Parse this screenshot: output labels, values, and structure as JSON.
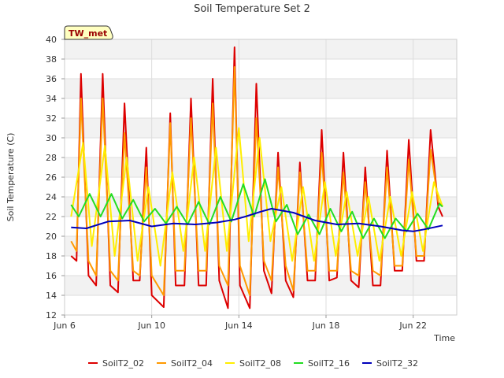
{
  "chart_data": {
    "type": "line",
    "title": "Soil Temperature Set 2",
    "xlabel": "Time",
    "ylabel": "Soil Temperature (C)",
    "badge": "TW_met",
    "xlim": [
      6.0,
      24.0
    ],
    "ylim": [
      12,
      40
    ],
    "x_unit": "day of June",
    "x_ticks": [
      {
        "value": 6,
        "label": "Jun 6"
      },
      {
        "value": 10,
        "label": "Jun 10"
      },
      {
        "value": 14,
        "label": "Jun 14"
      },
      {
        "value": 18,
        "label": "Jun 18"
      },
      {
        "value": 22,
        "label": "Jun 22"
      }
    ],
    "y_ticks": [
      12,
      14,
      16,
      18,
      20,
      22,
      24,
      26,
      28,
      30,
      32,
      34,
      36,
      38,
      40
    ],
    "grid": true,
    "legend_position": "bottom",
    "colors": {
      "SoilT2_02": "#dd0000",
      "SoilT2_04": "#ff9900",
      "SoilT2_08": "#ffee00",
      "SoilT2_16": "#22dd22",
      "SoilT2_32": "#0000bb"
    },
    "series": [
      {
        "name": "SoilT2_02",
        "x": [
          6.3,
          6.55,
          6.75,
          7.1,
          7.45,
          7.75,
          8.1,
          8.45,
          8.75,
          9.15,
          9.45,
          9.75,
          10.0,
          10.55,
          10.85,
          11.1,
          11.5,
          11.8,
          12.15,
          12.5,
          12.8,
          13.1,
          13.5,
          13.8,
          14.05,
          14.5,
          14.8,
          15.15,
          15.5,
          15.8,
          16.15,
          16.5,
          16.8,
          17.15,
          17.5,
          17.8,
          18.15,
          18.5,
          18.8,
          19.15,
          19.5,
          19.8,
          20.15,
          20.5,
          20.8,
          21.15,
          21.5,
          21.8,
          22.15,
          22.5,
          22.8,
          23.15,
          23.35
        ],
        "y": [
          18.0,
          17.5,
          36.5,
          16.0,
          15.0,
          36.5,
          15.0,
          14.3,
          33.5,
          15.5,
          15.5,
          29.0,
          14.0,
          12.8,
          32.5,
          15.0,
          15.0,
          34.0,
          15.0,
          15.0,
          36.0,
          15.5,
          12.7,
          39.2,
          15.0,
          12.7,
          35.5,
          16.5,
          14.2,
          28.5,
          15.5,
          13.8,
          27.5,
          15.5,
          15.5,
          30.8,
          15.5,
          15.8,
          28.5,
          15.5,
          14.8,
          27.0,
          15.0,
          15.0,
          28.7,
          16.5,
          16.5,
          29.8,
          17.5,
          17.5,
          30.8,
          23.0,
          22.0
        ]
      },
      {
        "name": "SoilT2_04",
        "x": [
          6.3,
          6.55,
          6.75,
          7.1,
          7.45,
          7.75,
          8.1,
          8.45,
          8.75,
          9.15,
          9.45,
          9.75,
          10.0,
          10.55,
          10.85,
          11.1,
          11.5,
          11.8,
          12.15,
          12.5,
          12.8,
          13.1,
          13.5,
          13.8,
          14.05,
          14.5,
          14.8,
          15.15,
          15.5,
          15.8,
          16.15,
          16.5,
          16.8,
          17.15,
          17.5,
          17.8,
          18.15,
          18.5,
          18.8,
          19.15,
          19.5,
          19.8,
          20.15,
          20.5,
          20.8,
          21.15,
          21.5,
          21.8,
          22.15,
          22.5,
          22.8,
          23.15,
          23.35
        ],
        "y": [
          19.5,
          18.5,
          34.0,
          17.5,
          16.0,
          34.0,
          16.5,
          15.5,
          30.5,
          16.5,
          16.0,
          27.0,
          16.0,
          14.0,
          31.5,
          16.5,
          16.5,
          32.0,
          16.5,
          16.5,
          33.5,
          17.0,
          15.0,
          37.2,
          17.0,
          14.0,
          32.0,
          17.5,
          15.5,
          27.0,
          17.0,
          14.5,
          26.5,
          16.5,
          16.5,
          28.5,
          16.5,
          16.5,
          26.5,
          16.5,
          16.0,
          25.5,
          16.5,
          16.0,
          27.0,
          17.0,
          17.0,
          27.8,
          18.0,
          18.0,
          28.8,
          23.5,
          23.0
        ]
      },
      {
        "name": "SoilT2_08",
        "x": [
          6.3,
          6.85,
          7.25,
          7.85,
          8.3,
          8.85,
          9.35,
          9.85,
          10.4,
          10.95,
          11.45,
          11.95,
          12.45,
          12.95,
          13.45,
          14.0,
          14.45,
          14.95,
          15.45,
          15.95,
          16.45,
          16.95,
          17.45,
          17.95,
          18.45,
          18.95,
          19.45,
          19.95,
          20.45,
          20.95,
          21.45,
          21.95,
          22.45,
          22.95,
          23.35
        ],
        "y": [
          22.0,
          29.5,
          19.0,
          29.2,
          18.0,
          28.0,
          17.5,
          25.0,
          17.0,
          26.5,
          18.5,
          28.0,
          18.5,
          29.0,
          18.5,
          31.0,
          19.5,
          30.0,
          19.5,
          25.0,
          17.5,
          25.0,
          17.5,
          25.5,
          18.0,
          24.5,
          18.0,
          24.0,
          17.5,
          24.0,
          18.0,
          24.5,
          18.5,
          25.5,
          23.0
        ]
      },
      {
        "name": "SoilT2_16",
        "x": [
          6.3,
          6.65,
          7.15,
          7.65,
          8.15,
          8.65,
          9.15,
          9.65,
          10.15,
          10.65,
          11.15,
          11.65,
          12.15,
          12.65,
          13.15,
          13.65,
          14.2,
          14.7,
          15.2,
          15.7,
          16.2,
          16.7,
          17.2,
          17.7,
          18.2,
          18.7,
          19.2,
          19.7,
          20.2,
          20.7,
          21.2,
          21.7,
          22.2,
          22.7,
          23.2,
          23.35
        ],
        "y": [
          23.2,
          22.0,
          24.3,
          22.0,
          24.3,
          21.8,
          23.7,
          21.5,
          22.8,
          21.3,
          23.0,
          21.2,
          23.5,
          21.2,
          24.0,
          21.5,
          25.3,
          22.0,
          25.8,
          21.5,
          23.2,
          20.2,
          22.2,
          20.2,
          22.8,
          20.5,
          22.5,
          19.8,
          21.8,
          19.8,
          21.8,
          20.5,
          22.3,
          20.7,
          23.3,
          23.0
        ]
      },
      {
        "name": "SoilT2_32",
        "x": [
          6.3,
          7.0,
          8.0,
          9.0,
          10.0,
          11.0,
          12.0,
          13.0,
          13.8,
          14.3,
          15.0,
          15.5,
          16.5,
          17.5,
          18.5,
          19.5,
          20.5,
          21.5,
          22.0,
          22.5,
          23.35
        ],
        "y": [
          20.9,
          20.8,
          21.5,
          21.6,
          21.0,
          21.3,
          21.2,
          21.4,
          21.7,
          22.0,
          22.5,
          22.8,
          22.4,
          21.6,
          21.2,
          21.3,
          21.0,
          20.6,
          20.5,
          20.7,
          21.1
        ]
      }
    ]
  }
}
